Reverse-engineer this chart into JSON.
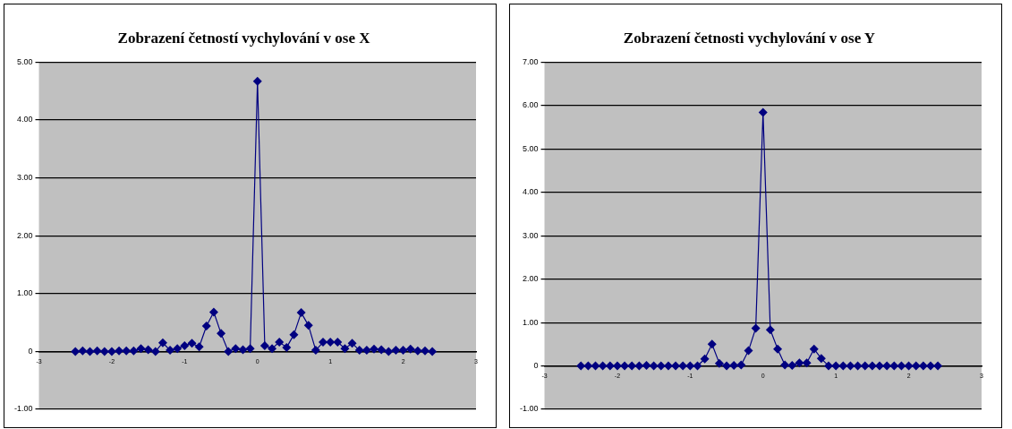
{
  "chart_data": [
    {
      "type": "line",
      "title": "Zobrazení četností vychylování v ose X",
      "marker": "diamond",
      "grid": "y",
      "legend": false,
      "xlim": [
        -3,
        3
      ],
      "xticks": [
        -3,
        -2,
        -1,
        0,
        1,
        2,
        3
      ],
      "ylim": [
        -1,
        5
      ],
      "yticks": [
        {
          "value": -1,
          "label": "-1.00"
        },
        0,
        {
          "value": 1,
          "label": "1.00"
        },
        {
          "value": 2,
          "label": "2.00"
        },
        {
          "value": 3,
          "label": "3.00"
        },
        {
          "value": 4,
          "label": "4.00"
        },
        {
          "value": 5,
          "label": "5.00"
        }
      ],
      "series": [
        {
          "color": "#000080",
          "x": [
            -2.5,
            -2.4,
            -2.3,
            -2.2,
            -2.1,
            -2.0,
            -1.9,
            -1.8,
            -1.7,
            -1.6,
            -1.5,
            -1.4,
            -1.3,
            -1.2,
            -1.1,
            -1.0,
            -0.9,
            -0.8,
            -0.7,
            -0.6,
            -0.5,
            -0.4,
            -0.3,
            -0.2,
            -0.1,
            0,
            0.1,
            0.2,
            0.3,
            0.4,
            0.5,
            0.6,
            0.7,
            0.8,
            0.9,
            1.0,
            1.1,
            1.2,
            1.3,
            1.4,
            1.5,
            1.6,
            1.7,
            1.8,
            1.9,
            2.0,
            2.1,
            2.2,
            2.3,
            2.4
          ],
          "values": [
            0,
            0.01,
            0,
            0.01,
            0,
            0,
            0.01,
            0.01,
            0.01,
            0.05,
            0.03,
            0,
            0.15,
            0.02,
            0.05,
            0.1,
            0.14,
            0.08,
            0.44,
            0.68,
            0.31,
            0,
            0.05,
            0.03,
            0.05,
            4.67,
            0.1,
            0.05,
            0.16,
            0.07,
            0.29,
            0.67,
            0.45,
            0.02,
            0.16,
            0.16,
            0.16,
            0.05,
            0.14,
            0.02,
            0.02,
            0.04,
            0.03,
            0,
            0.02,
            0.02,
            0.04,
            0.01,
            0.01,
            0
          ]
        }
      ]
    },
    {
      "type": "line",
      "title": "Zobrazení četnosti vychylování v ose Y",
      "marker": "diamond",
      "grid": "y",
      "legend": false,
      "xlim": [
        -3,
        3
      ],
      "xticks": [
        -3,
        -2,
        -1,
        0,
        1,
        2,
        3
      ],
      "ylim": [
        -1,
        7
      ],
      "yticks": [
        {
          "value": -1,
          "label": "-1.00"
        },
        0,
        {
          "value": 1,
          "label": "1.00"
        },
        {
          "value": 2,
          "label": "2.00"
        },
        {
          "value": 3,
          "label": "3.00"
        },
        {
          "value": 4,
          "label": "4.00"
        },
        {
          "value": 5,
          "label": "5.00"
        },
        {
          "value": 6,
          "label": "6.00"
        },
        {
          "value": 7,
          "label": "7.00"
        }
      ],
      "series": [
        {
          "color": "#000080",
          "x": [
            -2.5,
            -2.4,
            -2.3,
            -2.2,
            -2.1,
            -2.0,
            -1.9,
            -1.8,
            -1.7,
            -1.6,
            -1.5,
            -1.4,
            -1.3,
            -1.2,
            -1.1,
            -1.0,
            -0.9,
            -0.8,
            -0.7,
            -0.6,
            -0.5,
            -0.4,
            -0.3,
            -0.2,
            -0.1,
            0,
            0.1,
            0.2,
            0.3,
            0.4,
            0.5,
            0.6,
            0.7,
            0.8,
            0.9,
            1.0,
            1.1,
            1.2,
            1.3,
            1.4,
            1.5,
            1.6,
            1.7,
            1.8,
            1.9,
            2.0,
            2.1,
            2.2,
            2.3,
            2.4
          ],
          "values": [
            0,
            0,
            0,
            0,
            0,
            0,
            0,
            0,
            0,
            0.01,
            0,
            0,
            0,
            0,
            0,
            0,
            0,
            0.16,
            0.5,
            0.06,
            0,
            0.01,
            0.02,
            0.35,
            0.87,
            5.84,
            0.83,
            0.39,
            0.02,
            0.01,
            0.07,
            0.07,
            0.39,
            0.17,
            0,
            0,
            0,
            0,
            0,
            0,
            0,
            0,
            0,
            0,
            0,
            0,
            0,
            0,
            0,
            0
          ]
        }
      ]
    }
  ]
}
